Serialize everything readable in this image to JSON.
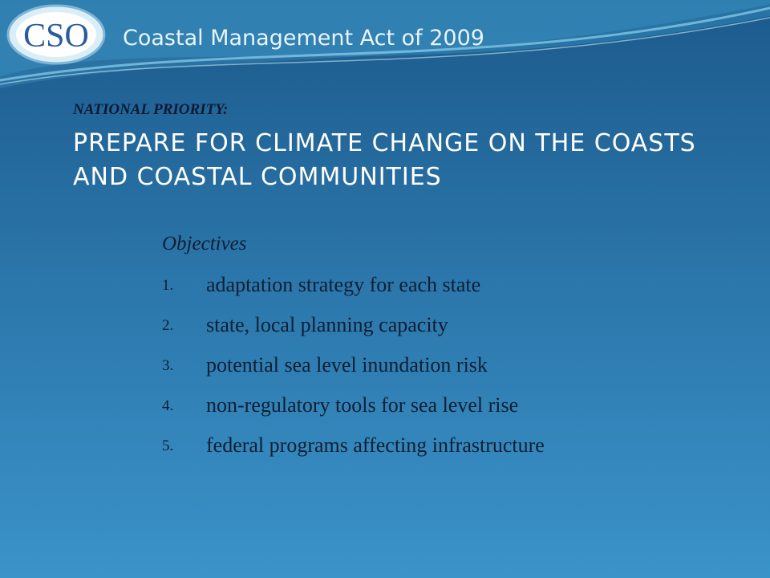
{
  "header": {
    "logo": "CSO",
    "title": "Coastal Management Act of 2009"
  },
  "priority": {
    "label": "NATIONAL PRIORITY:",
    "heading": "PREPARE FOR CLIMATE CHANGE ON THE COASTS AND COASTAL COMMUNITIES"
  },
  "objectives": {
    "title": "Objectives",
    "items": [
      {
        "number": "1.",
        "text": "adaptation strategy for each state"
      },
      {
        "number": "2.",
        "text": "state, local planning capacity"
      },
      {
        "number": "3.",
        "text": "potential sea level inundation risk"
      },
      {
        "number": "4.",
        "text": "non-regulatory tools for sea level rise"
      },
      {
        "number": "5.",
        "text": "federal programs affecting infrastructure"
      }
    ]
  }
}
